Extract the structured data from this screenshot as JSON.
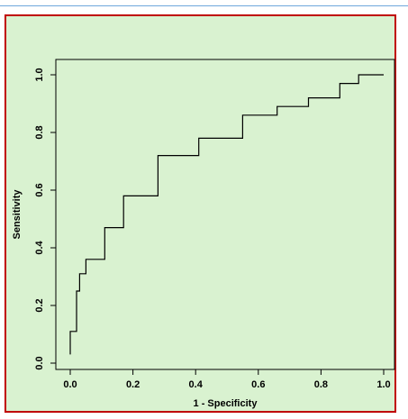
{
  "chart_data": {
    "type": "line",
    "title": "",
    "xlabel": "1 - Specificity",
    "ylabel": "Sensitivity",
    "xlim": [
      0,
      1
    ],
    "ylim": [
      0,
      1
    ],
    "x_ticks": [
      "0.0",
      "0.2",
      "0.4",
      "0.6",
      "0.8",
      "1.0"
    ],
    "y_ticks": [
      "0.0",
      "0.2",
      "0.4",
      "0.6",
      "0.8",
      "1.0"
    ],
    "grid": false,
    "legend": "none",
    "line_color": "#000000",
    "background_color": "#d9f2d0",
    "frame_color": "#c00000",
    "series": [
      {
        "x": [
          0.0,
          0.0,
          0.02,
          0.02,
          0.03,
          0.03,
          0.05,
          0.05,
          0.11,
          0.11,
          0.17,
          0.17,
          0.28,
          0.28,
          0.41,
          0.41,
          0.55,
          0.55,
          0.66,
          0.66,
          0.76,
          0.76,
          0.86,
          0.86,
          0.92,
          0.92,
          1.0
        ],
        "y": [
          0.03,
          0.11,
          0.11,
          0.25,
          0.25,
          0.31,
          0.31,
          0.36,
          0.36,
          0.47,
          0.47,
          0.58,
          0.58,
          0.72,
          0.72,
          0.78,
          0.78,
          0.86,
          0.86,
          0.89,
          0.89,
          0.92,
          0.92,
          0.97,
          0.97,
          1.0,
          1.0
        ]
      }
    ]
  }
}
